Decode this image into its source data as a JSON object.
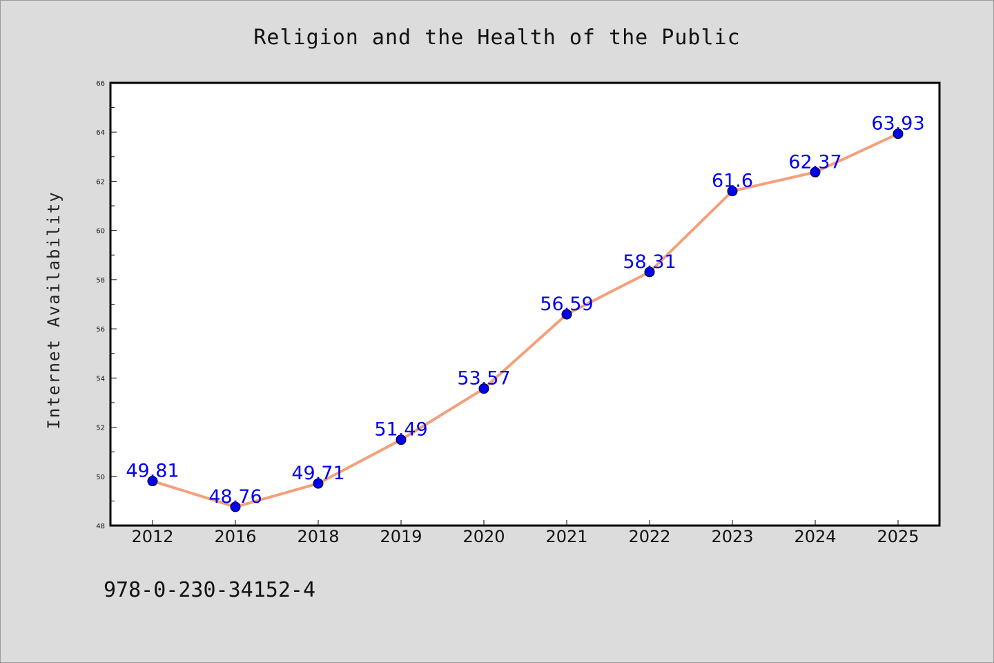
{
  "chart_data": {
    "type": "line",
    "title": "Religion and the Health of the Public",
    "xlabel": "",
    "ylabel": "Internet Availability",
    "categories": [
      "2012",
      "2016",
      "2018",
      "2019",
      "2020",
      "2021",
      "2022",
      "2023",
      "2024",
      "2025"
    ],
    "series": [
      {
        "values": [
          49.81,
          48.76,
          49.71,
          51.49,
          53.57,
          56.59,
          58.31,
          61.6,
          62.37,
          63.93
        ],
        "data_labels": [
          "49.81",
          "48.76",
          "49.71",
          "51.49",
          "53.57",
          "56.59",
          "58.31",
          "61.6",
          "62.37",
          "63.93"
        ],
        "line_color": "#f4a07a",
        "marker_color": "#0000ee"
      }
    ],
    "ylim": [
      48,
      66
    ],
    "yticks": [
      "48",
      "50",
      "52",
      "54",
      "56",
      "58",
      "60",
      "62",
      "64",
      "66"
    ],
    "grid": false,
    "legend": "none"
  },
  "footer": {
    "isbn": "978-0-230-34152-4"
  },
  "colors": {
    "background": "#dcdcdc",
    "plot_area": "#ffffff",
    "line": "#f4a07a",
    "marker": "#0000ee",
    "label_text": "#0000ee"
  }
}
